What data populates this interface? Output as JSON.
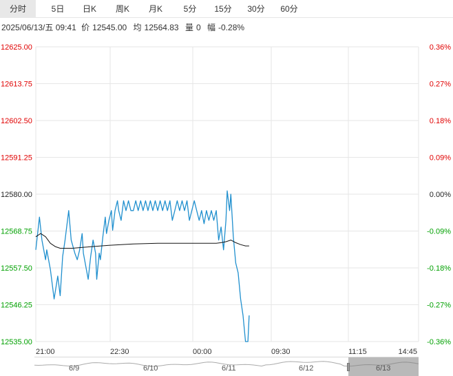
{
  "tabs": [
    "分时",
    "5日",
    "日K",
    "周K",
    "月K",
    "5分",
    "15分",
    "30分",
    "60分"
  ],
  "active_tab_index": 0,
  "info": {
    "datetime": "2025/06/13/五 09:41",
    "price_label": "价",
    "price": "12545.00",
    "avg_label": "均",
    "avg": "12564.83",
    "volume_label": "量",
    "volume": "0",
    "change_label": "幅",
    "change": "-0.28%"
  },
  "colors": {
    "price_line": "#1f8fce",
    "avg_line": "#111111",
    "up": "#e00000",
    "down": "#00a000",
    "neutral": "#222222",
    "grid": "#e6e6e6"
  },
  "chart_data": {
    "type": "line",
    "y_left_ticks": [
      "12625.00",
      "12613.75",
      "12602.50",
      "12591.25",
      "12580.00",
      "12568.75",
      "12557.50",
      "12546.25",
      "12535.00"
    ],
    "y_right_ticks": [
      "0.36%",
      "0.27%",
      "0.18%",
      "0.09%",
      "0.00%",
      "-0.09%",
      "-0.18%",
      "-0.27%",
      "-0.36%"
    ],
    "x_ticks": [
      "21:00",
      "22:30",
      "00:00",
      "09:30",
      "11:15",
      "14:45"
    ],
    "ylim": [
      12535.0,
      12625.0
    ],
    "reference": 12580.0,
    "series": [
      {
        "kind": "price",
        "points": [
          [
            0,
            12563
          ],
          [
            3,
            12573
          ],
          [
            5,
            12566
          ],
          [
            8,
            12560
          ],
          [
            9,
            12563
          ],
          [
            12,
            12557
          ],
          [
            15,
            12548
          ],
          [
            18,
            12555
          ],
          [
            20,
            12549
          ],
          [
            22,
            12561
          ],
          [
            24,
            12566
          ],
          [
            27,
            12575
          ],
          [
            29,
            12566
          ],
          [
            32,
            12562
          ],
          [
            34,
            12560
          ],
          [
            36,
            12563
          ],
          [
            38,
            12568
          ],
          [
            39,
            12562
          ],
          [
            41,
            12558
          ],
          [
            43,
            12554
          ],
          [
            45,
            12561
          ],
          [
            47,
            12566
          ],
          [
            49,
            12562
          ],
          [
            50,
            12554
          ],
          [
            52,
            12562
          ],
          [
            53,
            12560
          ],
          [
            55,
            12567
          ],
          [
            57,
            12573
          ],
          [
            58,
            12568
          ],
          [
            60,
            12572
          ],
          [
            62,
            12575
          ],
          [
            63,
            12569
          ],
          [
            65,
            12575
          ],
          [
            67,
            12578
          ],
          [
            68,
            12575
          ],
          [
            70,
            12572
          ],
          [
            72,
            12578
          ],
          [
            74,
            12575
          ],
          [
            76,
            12578
          ],
          [
            78,
            12575
          ],
          [
            80,
            12575
          ],
          [
            82,
            12578
          ],
          [
            84,
            12575
          ],
          [
            86,
            12578
          ],
          [
            88,
            12575
          ],
          [
            90,
            12578
          ],
          [
            92,
            12575
          ],
          [
            94,
            12578
          ],
          [
            96,
            12575
          ],
          [
            98,
            12578
          ],
          [
            100,
            12575
          ],
          [
            102,
            12578
          ],
          [
            104,
            12575
          ],
          [
            106,
            12578
          ],
          [
            108,
            12575
          ],
          [
            110,
            12578
          ],
          [
            112,
            12572
          ],
          [
            114,
            12575
          ],
          [
            116,
            12578
          ],
          [
            118,
            12575
          ],
          [
            120,
            12578
          ],
          [
            122,
            12575
          ],
          [
            124,
            12578
          ],
          [
            126,
            12572
          ],
          [
            128,
            12575
          ],
          [
            130,
            12578
          ],
          [
            132,
            12575
          ],
          [
            134,
            12572
          ],
          [
            136,
            12575
          ],
          [
            138,
            12571
          ],
          [
            140,
            12575
          ],
          [
            142,
            12572
          ],
          [
            144,
            12575
          ],
          [
            146,
            12572
          ],
          [
            148,
            12575
          ],
          [
            150,
            12566
          ],
          [
            152,
            12570
          ],
          [
            154,
            12563
          ],
          [
            156,
            12572
          ],
          [
            157,
            12581
          ],
          [
            159,
            12575
          ],
          [
            160,
            12580
          ],
          [
            162,
            12567
          ],
          [
            164,
            12559
          ],
          [
            166,
            12556
          ],
          [
            168,
            12548
          ],
          [
            170,
            12543
          ],
          [
            172,
            12535
          ],
          [
            174,
            12535
          ],
          [
            175,
            12543
          ]
        ]
      },
      {
        "kind": "average",
        "points": [
          [
            0,
            12567
          ],
          [
            4,
            12568
          ],
          [
            8,
            12567
          ],
          [
            12,
            12565
          ],
          [
            16,
            12564
          ],
          [
            20,
            12563.5
          ],
          [
            30,
            12563.5
          ],
          [
            40,
            12563.8
          ],
          [
            60,
            12564.4
          ],
          [
            80,
            12564.8
          ],
          [
            100,
            12565
          ],
          [
            120,
            12565
          ],
          [
            140,
            12565
          ],
          [
            148,
            12565
          ],
          [
            152,
            12565.2
          ],
          [
            156,
            12565.5
          ],
          [
            160,
            12566
          ],
          [
            164,
            12565.2
          ],
          [
            168,
            12564.6
          ],
          [
            172,
            12564.2
          ],
          [
            175,
            12564.2
          ]
        ]
      }
    ]
  },
  "navigator": {
    "day_labels": [
      "6/9",
      "6/10",
      "6/11",
      "6/12",
      "6/13"
    ]
  }
}
